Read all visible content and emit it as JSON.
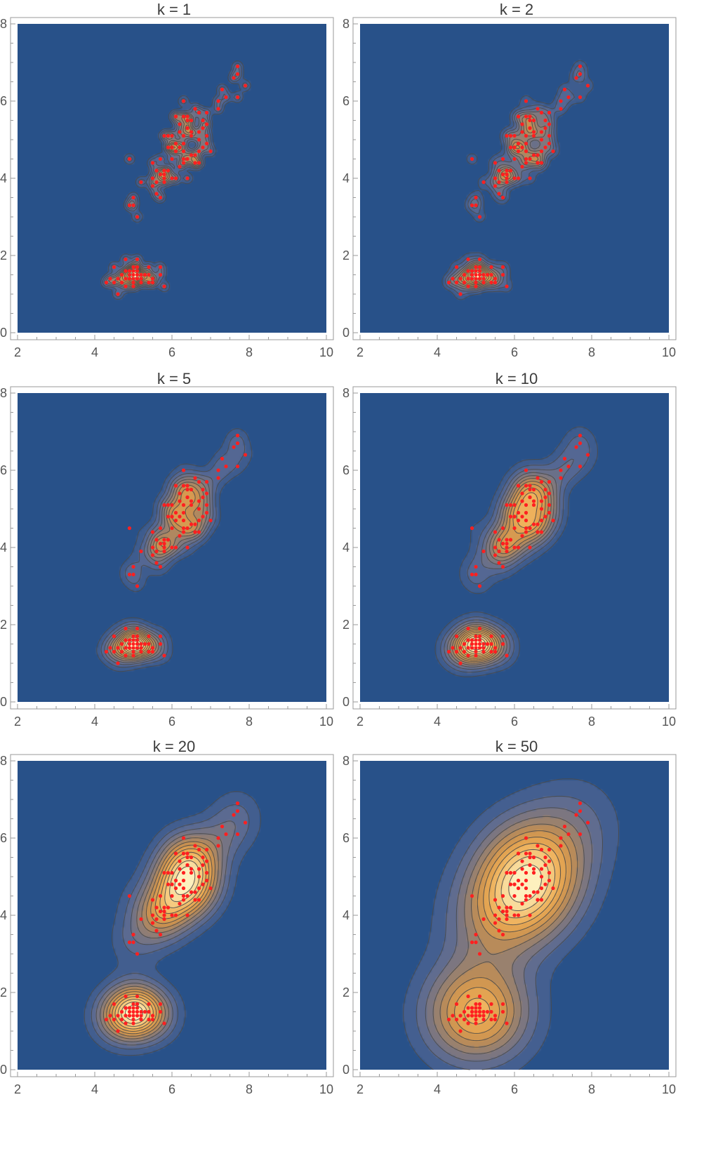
{
  "figure": {
    "xlim": [
      2,
      10
    ],
    "ylim": [
      0,
      8
    ],
    "x_major_ticks": [
      2,
      4,
      6,
      8,
      10
    ],
    "y_major_ticks": [
      0,
      2,
      4,
      6,
      8
    ],
    "colors": {
      "background": "#285189",
      "point": "#ff2020",
      "contour_line": "#4a4a4a",
      "frame": "#9a9a9a"
    }
  },
  "chart_data": [
    {
      "type": "contour",
      "title": "k = 1",
      "bandwidth": 0.1,
      "contour_levels": 14,
      "xlabel": "",
      "ylabel": "",
      "xlim": [
        2,
        10
      ],
      "ylim": [
        0,
        8
      ],
      "x_ticks": [
        "2",
        "4",
        "6",
        "8",
        "10"
      ],
      "y_ticks": [
        "0",
        "2",
        "4",
        "6",
        "8"
      ]
    },
    {
      "type": "contour",
      "title": "k = 2",
      "bandwidth": 0.14,
      "contour_levels": 14,
      "xlabel": "",
      "ylabel": "",
      "xlim": [
        2,
        10
      ],
      "ylim": [
        0,
        8
      ],
      "x_ticks": [
        "2",
        "4",
        "6",
        "8",
        "10"
      ],
      "y_ticks": [
        "0",
        "2",
        "4",
        "6",
        "8"
      ]
    },
    {
      "type": "contour",
      "title": "k = 5",
      "bandwidth": 0.22,
      "contour_levels": 14,
      "xlabel": "",
      "ylabel": "",
      "xlim": [
        2,
        10
      ],
      "ylim": [
        0,
        8
      ],
      "x_ticks": [
        "2",
        "4",
        "6",
        "8",
        "10"
      ],
      "y_ticks": [
        "0",
        "2",
        "4",
        "6",
        "8"
      ]
    },
    {
      "type": "contour",
      "title": "k = 10",
      "bandwidth": 0.3,
      "contour_levels": 14,
      "xlabel": "",
      "ylabel": "",
      "xlim": [
        2,
        10
      ],
      "ylim": [
        0,
        8
      ],
      "x_ticks": [
        "2",
        "4",
        "6",
        "8",
        "10"
      ],
      "y_ticks": [
        "0",
        "2",
        "4",
        "6",
        "8"
      ]
    },
    {
      "type": "contour",
      "title": "k = 20",
      "bandwidth": 0.45,
      "contour_levels": 12,
      "xlabel": "",
      "ylabel": "",
      "xlim": [
        2,
        10
      ],
      "ylim": [
        0,
        8
      ],
      "x_ticks": [
        "2",
        "4",
        "6",
        "8",
        "10"
      ],
      "y_ticks": [
        "0",
        "2",
        "4",
        "6",
        "8"
      ]
    },
    {
      "type": "contour",
      "title": "k = 50",
      "bandwidth": 0.85,
      "contour_levels": 11,
      "xlabel": "",
      "ylabel": "",
      "xlim": [
        2,
        10
      ],
      "ylim": [
        0,
        8
      ],
      "x_ticks": [
        "2",
        "4",
        "6",
        "8",
        "10"
      ],
      "y_ticks": [
        "0",
        "2",
        "4",
        "6",
        "8"
      ]
    }
  ],
  "points": [
    [
      4.3,
      1.3
    ],
    [
      4.4,
      1.4
    ],
    [
      4.5,
      1.3
    ],
    [
      4.6,
      1.4
    ],
    [
      4.6,
      1.0
    ],
    [
      4.7,
      1.5
    ],
    [
      4.7,
      1.3
    ],
    [
      4.8,
      1.6
    ],
    [
      4.8,
      1.4
    ],
    [
      4.8,
      1.9
    ],
    [
      4.8,
      1.2
    ],
    [
      4.9,
      1.5
    ],
    [
      4.9,
      1.4
    ],
    [
      4.9,
      1.6
    ],
    [
      5.0,
      1.4
    ],
    [
      5.0,
      1.6
    ],
    [
      5.0,
      1.2
    ],
    [
      5.0,
      1.5
    ],
    [
      5.0,
      1.3
    ],
    [
      5.1,
      1.5
    ],
    [
      5.1,
      1.4
    ],
    [
      5.1,
      1.9
    ],
    [
      5.1,
      1.7
    ],
    [
      5.1,
      1.6
    ],
    [
      5.2,
      1.5
    ],
    [
      5.2,
      1.4
    ],
    [
      5.2,
      1.3
    ],
    [
      5.3,
      1.5
    ],
    [
      5.4,
      1.7
    ],
    [
      5.4,
      1.5
    ],
    [
      5.4,
      1.3
    ],
    [
      5.5,
      1.4
    ],
    [
      5.5,
      1.3
    ],
    [
      5.7,
      1.5
    ],
    [
      5.7,
      1.7
    ],
    [
      5.8,
      1.2
    ],
    [
      4.5,
      1.7
    ],
    [
      5.0,
      1.7
    ],
    [
      4.9,
      3.3
    ],
    [
      5.0,
      3.5
    ],
    [
      5.0,
      3.3
    ],
    [
      5.1,
      3.0
    ],
    [
      4.9,
      4.5
    ],
    [
      5.2,
      3.9
    ],
    [
      5.5,
      3.8
    ],
    [
      5.5,
      4.0
    ],
    [
      5.6,
      3.6
    ],
    [
      5.6,
      3.9
    ],
    [
      5.7,
      3.5
    ],
    [
      5.7,
      4.1
    ],
    [
      5.8,
      4.0
    ],
    [
      5.8,
      3.9
    ],
    [
      5.5,
      4.4
    ],
    [
      5.6,
      4.2
    ],
    [
      5.9,
      4.2
    ],
    [
      6.0,
      4.0
    ],
    [
      6.1,
      4.0
    ],
    [
      6.3,
      4.4
    ],
    [
      6.2,
      4.3
    ],
    [
      5.7,
      4.5
    ],
    [
      5.8,
      4.1
    ],
    [
      5.9,
      4.8
    ],
    [
      6.0,
      4.5
    ],
    [
      6.1,
      4.7
    ],
    [
      6.4,
      4.5
    ],
    [
      6.3,
      4.7
    ],
    [
      6.6,
      4.4
    ],
    [
      6.7,
      4.4
    ],
    [
      6.8,
      4.8
    ],
    [
      6.9,
      4.9
    ],
    [
      6.0,
      5.1
    ],
    [
      6.1,
      5.6
    ],
    [
      6.0,
      4.8
    ],
    [
      5.8,
      5.1
    ],
    [
      6.3,
      4.9
    ],
    [
      6.4,
      5.3
    ],
    [
      6.5,
      5.1
    ],
    [
      6.7,
      5.0
    ],
    [
      6.2,
      5.4
    ],
    [
      6.3,
      5.6
    ],
    [
      6.4,
      5.5
    ],
    [
      6.4,
      5.6
    ],
    [
      6.5,
      5.5
    ],
    [
      6.5,
      5.2
    ],
    [
      6.7,
      5.7
    ],
    [
      6.8,
      5.5
    ],
    [
      6.7,
      5.2
    ],
    [
      6.9,
      5.4
    ],
    [
      6.9,
      5.7
    ],
    [
      7.0,
      4.7
    ],
    [
      6.6,
      4.6
    ],
    [
      6.2,
      4.8
    ],
    [
      6.3,
      5.1
    ],
    [
      6.9,
      5.1
    ],
    [
      7.2,
      6.0
    ],
    [
      7.2,
      5.8
    ],
    [
      7.3,
      6.3
    ],
    [
      7.4,
      6.1
    ],
    [
      7.6,
      6.6
    ],
    [
      7.7,
      6.7
    ],
    [
      7.7,
      6.9
    ],
    [
      7.7,
      6.1
    ],
    [
      7.9,
      6.4
    ],
    [
      6.3,
      6.0
    ],
    [
      6.1,
      4.9
    ],
    [
      5.9,
      5.1
    ],
    [
      6.4,
      5.3
    ],
    [
      6.6,
      5.8
    ],
    [
      6.5,
      4.6
    ],
    [
      6.7,
      4.7
    ],
    [
      6.3,
      4.5
    ],
    [
      6.0,
      4.8
    ],
    [
      6.1,
      5.6
    ],
    [
      5.8,
      4.2
    ],
    [
      6.2,
      5.2
    ],
    [
      6.6,
      4.4
    ],
    [
      6.8,
      5.3
    ],
    [
      6.4,
      4.0
    ]
  ]
}
